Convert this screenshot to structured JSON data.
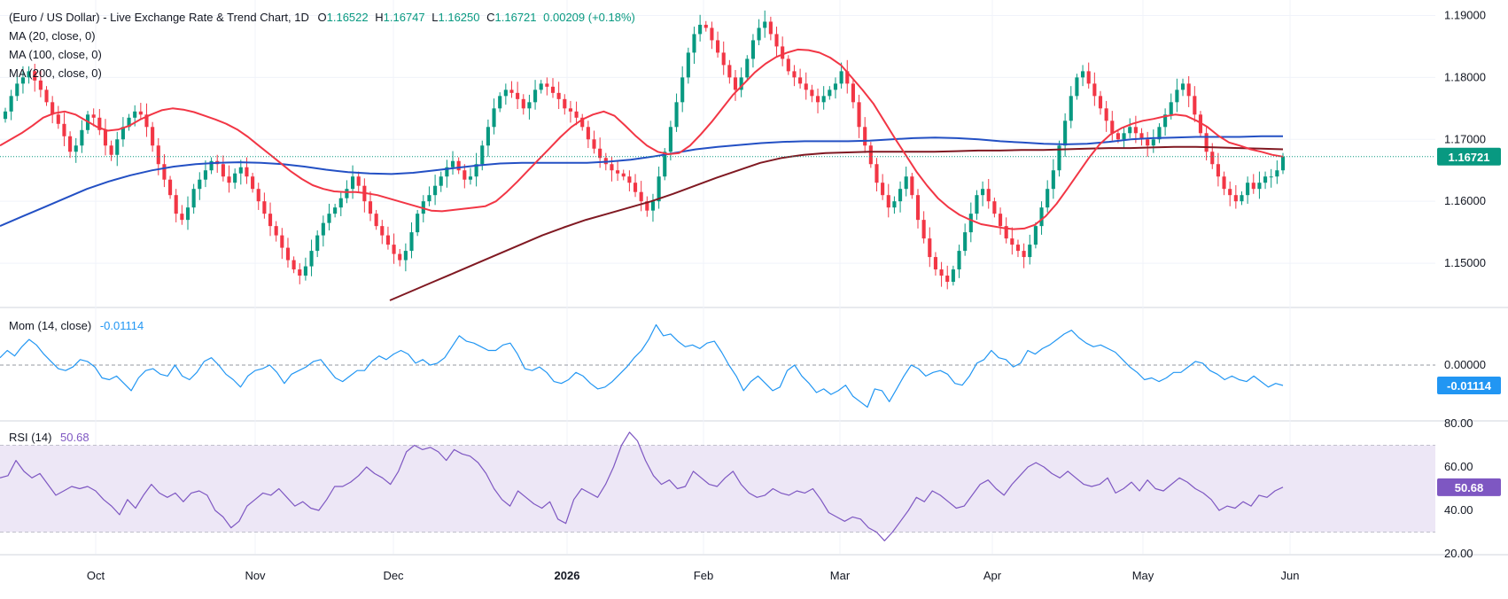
{
  "header": {
    "title": "(Euro / US Dollar) - Live Exchange Rate & Trend Chart, 1D",
    "open_label": "O",
    "open": "1.16522",
    "high_label": "H",
    "high": "1.16747",
    "low_label": "L",
    "low": "1.16250",
    "close_label": "C",
    "close": "1.16721",
    "change": "0.00209 (+0.18%)"
  },
  "indicators": {
    "ma20": "MA (20, close, 0)",
    "ma100": "MA (100, close, 0)",
    "ma200": "MA (200, close, 0)",
    "mom_label": "Mom (14, close)",
    "mom_value": "-0.01114",
    "rsi_label": "RSI (14)",
    "rsi_value": "50.68"
  },
  "colors": {
    "up": "#089981",
    "down": "#F23645",
    "ma20": "#F23645",
    "ma100": "#2350C4",
    "ma200": "#801922",
    "mom": "#2196F3",
    "rsi": "#7E57C2",
    "rsi_band": "#EDE7F6"
  },
  "chart_data": [
    {
      "type": "candlestick",
      "panel": "price",
      "y_ticks": [
        "1.19000",
        "1.18000",
        "1.17000",
        "1.16000",
        "1.15000"
      ],
      "ylim": [
        1.143,
        1.1925
      ],
      "last_price": "1.16721",
      "x_labels": [
        "Oct",
        "Nov",
        "Dec",
        "2026",
        "Feb",
        "Mar",
        "Apr",
        "May",
        "Jun"
      ],
      "close_series": [
        1.1745,
        1.177,
        1.179,
        1.18,
        1.181,
        1.1795,
        1.178,
        1.176,
        1.174,
        1.1725,
        1.1705,
        1.168,
        1.169,
        1.1715,
        1.174,
        1.1735,
        1.1715,
        1.169,
        1.1675,
        1.17,
        1.172,
        1.1735,
        1.1745,
        1.174,
        1.172,
        1.169,
        1.166,
        1.1635,
        1.161,
        1.158,
        1.157,
        1.159,
        1.162,
        1.1635,
        1.165,
        1.1665,
        1.166,
        1.164,
        1.163,
        1.1645,
        1.1655,
        1.164,
        1.162,
        1.16,
        1.158,
        1.156,
        1.1545,
        1.1525,
        1.1505,
        1.149,
        1.148,
        1.1495,
        1.152,
        1.1545,
        1.1565,
        1.158,
        1.159,
        1.1605,
        1.162,
        1.164,
        1.1625,
        1.16,
        1.158,
        1.156,
        1.1545,
        1.153,
        1.1515,
        1.1505,
        1.152,
        1.155,
        1.158,
        1.16,
        1.161,
        1.1625,
        1.164,
        1.1655,
        1.1665,
        1.165,
        1.1635,
        1.164,
        1.166,
        1.169,
        1.172,
        1.175,
        1.177,
        1.178,
        1.1775,
        1.1765,
        1.175,
        1.176,
        1.178,
        1.179,
        1.1785,
        1.1775,
        1.1765,
        1.175,
        1.1745,
        1.1735,
        1.172,
        1.17,
        1.1685,
        1.167,
        1.166,
        1.165,
        1.1645,
        1.164,
        1.163,
        1.1615,
        1.16,
        1.1585,
        1.16,
        1.164,
        1.168,
        1.172,
        1.176,
        1.18,
        1.184,
        1.187,
        1.1885,
        1.188,
        1.186,
        1.184,
        1.182,
        1.18,
        1.178,
        1.18,
        1.183,
        1.186,
        1.188,
        1.189,
        1.187,
        1.185,
        1.183,
        1.181,
        1.18,
        1.179,
        1.178,
        1.177,
        1.176,
        1.177,
        1.178,
        1.179,
        1.181,
        1.179,
        1.176,
        1.172,
        1.169,
        1.166,
        1.163,
        1.161,
        1.159,
        1.16,
        1.162,
        1.164,
        1.161,
        1.157,
        1.154,
        1.151,
        1.149,
        1.148,
        1.147,
        1.149,
        1.152,
        1.155,
        1.158,
        1.161,
        1.162,
        1.16,
        1.158,
        1.156,
        1.154,
        1.153,
        1.152,
        1.151,
        1.153,
        1.156,
        1.159,
        1.162,
        1.165,
        1.169,
        1.173,
        1.177,
        1.18,
        1.181,
        1.179,
        1.177,
        1.175,
        1.173,
        1.171,
        1.17,
        1.171,
        1.172,
        1.171,
        1.17,
        1.169,
        1.17,
        1.172,
        1.174,
        1.176,
        1.178,
        1.179,
        1.177,
        1.174,
        1.171,
        1.168,
        1.166,
        1.164,
        1.162,
        1.161,
        1.16,
        1.161,
        1.163,
        1.162,
        1.163,
        1.164,
        1.164,
        1.165,
        1.1672
      ],
      "ma20_series": [
        1.169,
        1.17,
        1.171,
        1.1722,
        1.1735,
        1.1742,
        1.1745,
        1.174,
        1.173,
        1.172,
        1.1714,
        1.1716,
        1.1722,
        1.1732,
        1.174,
        1.1747,
        1.175,
        1.1748,
        1.1744,
        1.1738,
        1.1732,
        1.1725,
        1.1716,
        1.1704,
        1.169,
        1.1676,
        1.1662,
        1.1648,
        1.1636,
        1.1626,
        1.162,
        1.1616,
        1.1615,
        1.1615,
        1.1613,
        1.161,
        1.1605,
        1.16,
        1.1595,
        1.159,
        1.1585,
        1.1584,
        1.1586,
        1.1588,
        1.159,
        1.1592,
        1.16,
        1.1615,
        1.1632,
        1.165,
        1.1668,
        1.1686,
        1.1704,
        1.172,
        1.1732,
        1.174,
        1.1745,
        1.1738,
        1.1722,
        1.1705,
        1.169,
        1.168,
        1.1676,
        1.1678,
        1.169,
        1.1708,
        1.1728,
        1.175,
        1.1772,
        1.179,
        1.1808,
        1.1822,
        1.1833,
        1.184,
        1.1845,
        1.1844,
        1.184,
        1.1832,
        1.182,
        1.18,
        1.178,
        1.1758,
        1.173,
        1.1702,
        1.1675,
        1.1648,
        1.1625,
        1.1605,
        1.159,
        1.1578,
        1.157,
        1.1563,
        1.156,
        1.1557,
        1.1555,
        1.1556,
        1.1562,
        1.1576,
        1.1596,
        1.162,
        1.1645,
        1.167,
        1.1692,
        1.1708,
        1.1718,
        1.1725,
        1.173,
        1.1733,
        1.1737,
        1.174,
        1.1738,
        1.173,
        1.172,
        1.1706,
        1.1695,
        1.169,
        1.1684,
        1.168,
        1.1675,
        1.1672
      ],
      "ma100_series": [
        1.156,
        1.1575,
        1.159,
        1.1605,
        1.162,
        1.1632,
        1.1642,
        1.165,
        1.1656,
        1.166,
        1.1662,
        1.1663,
        1.1662,
        1.166,
        1.1656,
        1.1651,
        1.1647,
        1.1645,
        1.1644,
        1.1646,
        1.165,
        1.1654,
        1.1658,
        1.1661,
        1.1662,
        1.1662,
        1.1662,
        1.1662,
        1.1664,
        1.1667,
        1.1672,
        1.1678,
        1.1684,
        1.1688,
        1.1691,
        1.1694,
        1.1696,
        1.1697,
        1.1697,
        1.1697,
        1.1698,
        1.17,
        1.1702,
        1.1703,
        1.1702,
        1.17,
        1.1697,
        1.1695,
        1.1693,
        1.1692,
        1.1693,
        1.1696,
        1.17,
        1.1702,
        1.1703,
        1.1704,
        1.1704,
        1.1704,
        1.1705,
        1.1705
      ],
      "ma200_series": [
        1.144,
        1.1455,
        1.147,
        1.1485,
        1.15,
        1.1515,
        1.153,
        1.1545,
        1.1558,
        1.157,
        1.158,
        1.159,
        1.16,
        1.1612,
        1.1625,
        1.1638,
        1.165,
        1.1662,
        1.167,
        1.1675,
        1.1678,
        1.1679,
        1.168,
        1.168,
        1.168,
        1.168,
        1.1681,
        1.1682,
        1.1682,
        1.1683,
        1.1683,
        1.1684,
        1.1685,
        1.1686,
        1.1686,
        1.1687,
        1.1688,
        1.1688,
        1.1687,
        1.1686,
        1.1685,
        1.1684
      ]
    },
    {
      "type": "line",
      "panel": "momentum",
      "name": "Mom (14, close)",
      "y_ticks": [
        "0.00000"
      ],
      "ylim": [
        -0.03,
        0.03
      ],
      "last_value": "-0.01114",
      "values": [
        0.004,
        0.008,
        0.005,
        0.01,
        0.014,
        0.011,
        0.006,
        0.002,
        -0.002,
        -0.003,
        -0.001,
        0.003,
        0.002,
        -0.001,
        -0.007,
        -0.008,
        -0.006,
        -0.01,
        -0.014,
        -0.007,
        -0.003,
        -0.002,
        -0.005,
        -0.006,
        0.0,
        -0.006,
        -0.008,
        -0.004,
        0.002,
        0.004,
        0.0,
        -0.005,
        -0.008,
        -0.012,
        -0.006,
        -0.003,
        -0.002,
        0.0,
        -0.004,
        -0.01,
        -0.005,
        -0.003,
        -0.001,
        0.002,
        0.003,
        -0.002,
        -0.007,
        -0.009,
        -0.006,
        -0.003,
        -0.003,
        0.002,
        0.005,
        0.003,
        0.006,
        0.008,
        0.006,
        0.001,
        0.003,
        0.0,
        0.001,
        0.004,
        0.01,
        0.016,
        0.013,
        0.012,
        0.01,
        0.008,
        0.008,
        0.011,
        0.012,
        0.006,
        -0.002,
        -0.003,
        -0.001,
        -0.004,
        -0.009,
        -0.01,
        -0.008,
        -0.004,
        -0.006,
        -0.01,
        -0.013,
        -0.012,
        -0.009,
        -0.005,
        -0.001,
        0.004,
        0.008,
        0.014,
        0.022,
        0.016,
        0.017,
        0.013,
        0.01,
        0.011,
        0.009,
        0.012,
        0.013,
        0.007,
        0.0,
        -0.006,
        -0.014,
        -0.009,
        -0.006,
        -0.01,
        -0.014,
        -0.012,
        -0.003,
        0.0,
        -0.006,
        -0.01,
        -0.015,
        -0.013,
        -0.016,
        -0.014,
        -0.011,
        -0.017,
        -0.02,
        -0.023,
        -0.013,
        -0.014,
        -0.02,
        -0.013,
        -0.006,
        0.0,
        -0.002,
        -0.006,
        -0.004,
        -0.003,
        -0.005,
        -0.01,
        -0.011,
        -0.006,
        0.001,
        0.003,
        0.008,
        0.004,
        0.003,
        -0.001,
        0.001,
        0.008,
        0.006,
        0.009,
        0.011,
        0.014,
        0.017,
        0.019,
        0.015,
        0.012,
        0.01,
        0.011,
        0.009,
        0.007,
        0.003,
        -0.001,
        -0.004,
        -0.008,
        -0.007,
        -0.009,
        -0.007,
        -0.004,
        -0.004,
        -0.001,
        0.002,
        0.001,
        -0.003,
        -0.005,
        -0.008,
        -0.006,
        -0.008,
        -0.009,
        -0.006,
        -0.009,
        -0.012,
        -0.01,
        -0.01114
      ]
    },
    {
      "type": "line",
      "panel": "rsi",
      "name": "RSI (14)",
      "y_ticks": [
        "80.00",
        "60.00",
        "40.00",
        "20.00"
      ],
      "ylim": [
        20,
        80
      ],
      "band": [
        30,
        70
      ],
      "midline": 50,
      "last_value": "50.68",
      "values": [
        55,
        56,
        63,
        58,
        55,
        57,
        52,
        47,
        49,
        51,
        50,
        51,
        49,
        45,
        42,
        38,
        45,
        41,
        47,
        52,
        48,
        46,
        48,
        44,
        48,
        49,
        47,
        40,
        37,
        32,
        35,
        42,
        45,
        48,
        47,
        50,
        46,
        42,
        44,
        41,
        40,
        45,
        51,
        51,
        53,
        56,
        60,
        57,
        55,
        52,
        58,
        67,
        70,
        68,
        69,
        67,
        63,
        68,
        66,
        65,
        62,
        57,
        50,
        45,
        42,
        49,
        46,
        43,
        41,
        44,
        36,
        34,
        45,
        50,
        48,
        46,
        52,
        60,
        70,
        76,
        72,
        63,
        56,
        52,
        54,
        50,
        51,
        58,
        55,
        52,
        51,
        55,
        58,
        52,
        48,
        46,
        47,
        50,
        48,
        47,
        49,
        48,
        50,
        45,
        39,
        37,
        35,
        37,
        36,
        32,
        30,
        26,
        30,
        35,
        40,
        46,
        44,
        49,
        47,
        44,
        41,
        42,
        47,
        52,
        54,
        50,
        47,
        52,
        56,
        60,
        62,
        60,
        57,
        55,
        58,
        55,
        52,
        51,
        52,
        55,
        48,
        50,
        53,
        49,
        54,
        50,
        49,
        52,
        55,
        53,
        50,
        48,
        45,
        40,
        42,
        41,
        44,
        42,
        47,
        46,
        49,
        50.68
      ]
    }
  ]
}
